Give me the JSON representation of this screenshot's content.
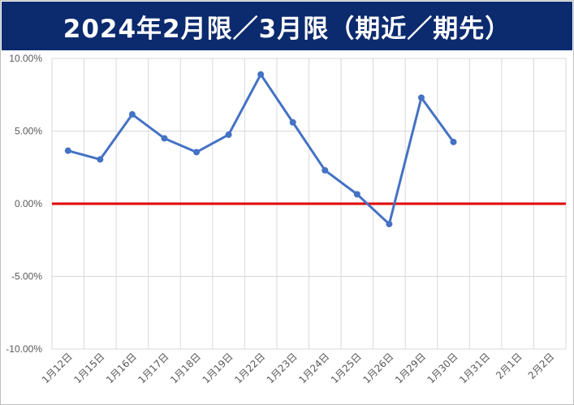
{
  "chart_data": {
    "type": "line",
    "title": "2024年2月限／3月限（期近／期先）",
    "categories": [
      "1月12日",
      "1月15日",
      "1月16日",
      "1月17日",
      "1月18日",
      "1月19日",
      "1月22日",
      "1月23日",
      "1月24日",
      "1月25日",
      "1月26日",
      "1月29日",
      "1月30日",
      "1月31日",
      "2月1日",
      "2月2日"
    ],
    "series": [
      {
        "values": [
          3.65,
          3.05,
          6.15,
          4.5,
          3.55,
          4.75,
          8.9,
          5.6,
          2.3,
          0.65,
          -1.4,
          7.3,
          4.25,
          null,
          null,
          null
        ],
        "color": "#4472c4"
      }
    ],
    "reference_line": {
      "value": 0.0,
      "color": "#e00000"
    },
    "ylim": [
      -10,
      10
    ],
    "yticks": [
      "10.00%",
      "5.00%",
      "0.00%",
      "-5.00%",
      "-10.00%"
    ],
    "ytick_values": [
      10,
      5,
      0,
      -5,
      -10
    ],
    "grid": true,
    "xlabel": "",
    "ylabel": ""
  },
  "colors": {
    "title_bg": "#0c2a6e",
    "gridline": "#d9d9d9"
  }
}
